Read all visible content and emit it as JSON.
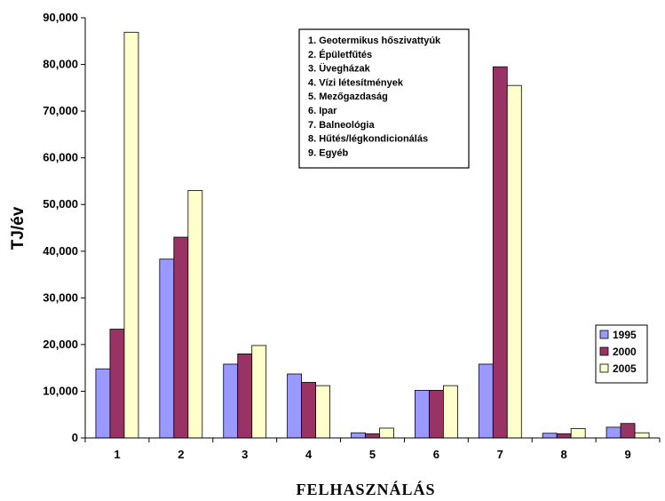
{
  "chart_data": {
    "type": "bar",
    "categories": [
      "1",
      "2",
      "3",
      "4",
      "5",
      "6",
      "7",
      "8",
      "9"
    ],
    "series": [
      {
        "name": "1995",
        "color": "#9999ff",
        "values": [
          14800,
          38300,
          15800,
          13700,
          1100,
          10200,
          15800,
          1000,
          2300
        ]
      },
      {
        "name": "2000",
        "color": "#993366",
        "values": [
          23300,
          43000,
          18000,
          11900,
          900,
          10200,
          79500,
          900,
          3100
        ]
      },
      {
        "name": "2005",
        "color": "#ffffcc",
        "values": [
          86900,
          53000,
          19800,
          11200,
          2100,
          11200,
          75500,
          2000,
          1100
        ]
      }
    ],
    "yticks": [
      "0",
      "10,000",
      "20,000",
      "30,000",
      "40,000",
      "50,000",
      "60,000",
      "70,000",
      "80,000",
      "90,000"
    ],
    "ylim": [
      0,
      90000
    ],
    "ylabel": "TJ/év",
    "xlabel": "FELHASZNÁLÁS",
    "grid": false,
    "legend_position": "right",
    "category_key": [
      "1.  Geotermikus hőszivattyúk",
      "2.  Épületfűtés",
      "3.  Üvegházak",
      "4.  Vízi létesítmények",
      "5.  Mezőgazdaság",
      "6.  Ipar",
      "7.  Balneológia",
      "8.  Hűtés/légkondicionálás",
      "9.  Egyéb"
    ]
  }
}
